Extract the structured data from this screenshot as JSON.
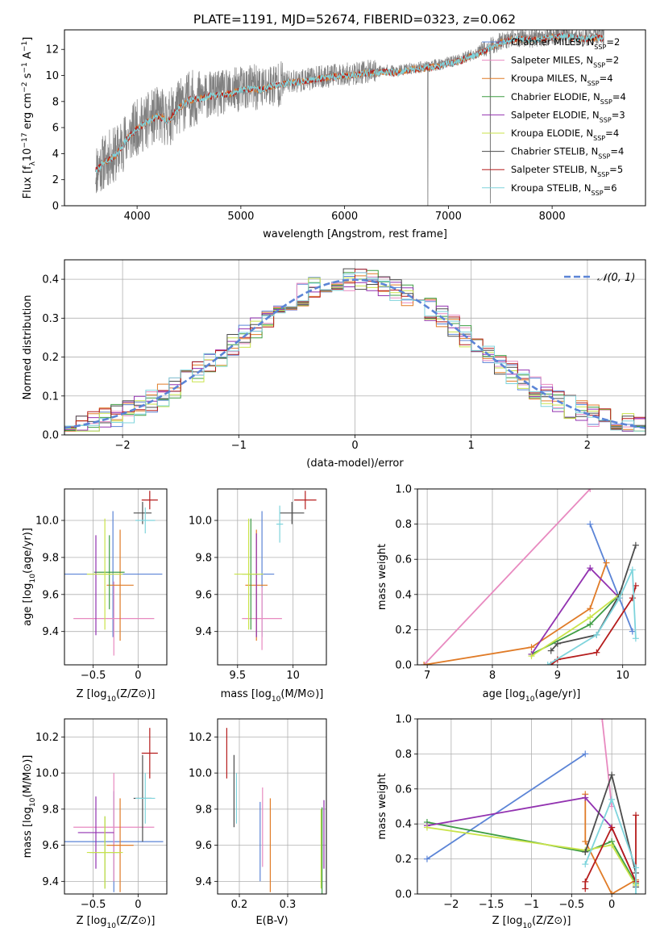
{
  "figure": {
    "colors": {
      "Chabrier MILES": "#5b84d6",
      "Salpeter MILES": "#e88ac0",
      "Kroupa MILES": "#e07b27",
      "Chabrier ELODIE": "#3f9e44",
      "Salpeter ELODIE": "#9232b0",
      "Kroupa ELODIE": "#c9e34a",
      "Chabrier STELIB": "#4c4c4c",
      "Salpeter STELIB": "#b51c1c",
      "Kroupa STELIB": "#7ed4dc",
      "data": "#808080"
    }
  },
  "chart_data": [
    {
      "id": "spectrum",
      "type": "line",
      "title": "PLATE=1191, MJD=52674, FIBERID=0323, z=0.062",
      "xlabel": "wavelength [Angstrom, rest frame]",
      "ylabel_parts": [
        "Flux [f",
        "λ",
        "10",
        "−17",
        " erg cm",
        "−2",
        " s",
        "−1",
        " A",
        "−1",
        "]"
      ],
      "xlim": [
        3300,
        8900
      ],
      "ylim": [
        0,
        13.5
      ],
      "xticks": [
        4000,
        5000,
        6000,
        7000,
        8000
      ],
      "yticks": [
        0,
        2,
        4,
        6,
        8,
        10,
        12
      ],
      "grid": false,
      "legend_position": "right",
      "data_continuum": [
        [
          3600,
          2.8
        ],
        [
          3700,
          3.5
        ],
        [
          3800,
          4.0
        ],
        [
          3900,
          5.2
        ],
        [
          4000,
          6.0
        ],
        [
          4100,
          6.5
        ],
        [
          4200,
          7.0
        ],
        [
          4300,
          6.6
        ],
        [
          4400,
          7.6
        ],
        [
          4500,
          8.2
        ],
        [
          4600,
          8.3
        ],
        [
          4700,
          8.5
        ],
        [
          4800,
          8.6
        ],
        [
          4900,
          8.7
        ],
        [
          5000,
          9.0
        ],
        [
          5100,
          9.1
        ],
        [
          5200,
          9.0
        ],
        [
          5300,
          9.3
        ],
        [
          5400,
          9.4
        ],
        [
          5500,
          9.6
        ],
        [
          5600,
          9.6
        ],
        [
          5700,
          9.8
        ],
        [
          5800,
          9.9
        ],
        [
          5900,
          10.0
        ],
        [
          6000,
          10.1
        ],
        [
          6100,
          10.1
        ],
        [
          6200,
          10.3
        ],
        [
          6300,
          10.3
        ],
        [
          6400,
          10.4
        ],
        [
          6500,
          10.3
        ],
        [
          6600,
          10.5
        ],
        [
          6700,
          10.6
        ],
        [
          6800,
          10.7
        ],
        [
          6900,
          10.8
        ],
        [
          7000,
          11.0
        ],
        [
          7100,
          11.2
        ],
        [
          7200,
          11.5
        ],
        [
          7300,
          11.8
        ],
        [
          7400,
          12.2
        ],
        [
          7500,
          12.6
        ],
        [
          7600,
          12.8
        ],
        [
          7700,
          12.9
        ],
        [
          7800,
          12.8
        ],
        [
          7900,
          12.9
        ],
        [
          8000,
          13.0
        ],
        [
          8100,
          13.1
        ],
        [
          8200,
          13.0
        ],
        [
          8300,
          12.9
        ],
        [
          8400,
          13.0
        ]
      ],
      "models": [
        {
          "name": "Chabrier MILES",
          "nssp": "2"
        },
        {
          "name": "Salpeter MILES",
          "nssp": "2"
        },
        {
          "name": "Kroupa MILES",
          "nssp": "4"
        },
        {
          "name": "Chabrier ELODIE",
          "nssp": "4"
        },
        {
          "name": "Salpeter ELODIE",
          "nssp": "3"
        },
        {
          "name": "Kroupa ELODIE",
          "nssp": "4"
        },
        {
          "name": "Chabrier STELIB",
          "nssp": "4"
        },
        {
          "name": "Salpeter STELIB",
          "nssp": "5"
        },
        {
          "name": "Kroupa STELIB",
          "nssp": "6"
        }
      ]
    },
    {
      "id": "residuals",
      "type": "histogram",
      "xlabel": "(data-model)/error",
      "ylabel": "Normed distribution",
      "xlim": [
        -2.5,
        2.5
      ],
      "ylim": [
        0,
        0.45
      ],
      "xticks": [
        -2,
        -1,
        0,
        1,
        2
      ],
      "yticks": [
        0.0,
        0.1,
        0.2,
        0.3,
        0.4
      ],
      "grid": true,
      "legend_position": "top-right",
      "reference_curve": "N(0,1)",
      "bin_width": 0.1
    },
    {
      "id": "age_vs_z",
      "type": "scatter",
      "xlabel_parts": [
        "Z [log",
        "10",
        "(Z/Z",
        "⊙",
        ")]"
      ],
      "ylabel_parts": [
        "age  [log",
        "10",
        "(age/yr)]"
      ],
      "xlim": [
        -0.82,
        0.32
      ],
      "ylim": [
        9.22,
        10.17
      ],
      "xticks": [
        -0.5,
        0.0
      ],
      "yticks": [
        9.4,
        9.6,
        9.8,
        10.0
      ],
      "grid": true,
      "points": [
        {
          "series": "Chabrier MILES",
          "x": -0.28,
          "xerr": 0.55,
          "y": 9.71,
          "yerr": 0.34
        },
        {
          "series": "Salpeter MILES",
          "x": -0.27,
          "xerr": 0.45,
          "y": 9.47,
          "yerr": 0.2
        },
        {
          "series": "Kroupa MILES",
          "x": -0.2,
          "xerr": 0.15,
          "y": 9.65,
          "yerr": 0.3
        },
        {
          "series": "Chabrier ELODIE",
          "x": -0.32,
          "xerr": 0.17,
          "y": 9.72,
          "yerr": 0.2
        },
        {
          "series": "Salpeter ELODIE",
          "x": -0.47,
          "xerr": 0.0,
          "y": 9.65,
          "yerr": 0.27
        },
        {
          "series": "Kroupa ELODIE",
          "x": -0.37,
          "xerr": 0.2,
          "y": 9.71,
          "yerr": 0.3
        },
        {
          "series": "Chabrier STELIB",
          "x": 0.05,
          "xerr": 0.1,
          "y": 10.04,
          "yerr": 0.06
        },
        {
          "series": "Salpeter STELIB",
          "x": 0.13,
          "xerr": 0.09,
          "y": 10.11,
          "yerr": 0.05
        },
        {
          "series": "Kroupa STELIB",
          "x": 0.08,
          "xerr": 0.11,
          "y": 10.0,
          "yerr": 0.07
        }
      ]
    },
    {
      "id": "age_vs_mass",
      "type": "scatter",
      "xlabel_parts": [
        "mass [log",
        "10",
        "(M/M",
        "⊙",
        ")]"
      ],
      "ylim": [
        9.22,
        10.17
      ],
      "xlim": [
        9.32,
        10.3
      ],
      "xticks": [
        9.5,
        10.0
      ],
      "yticks": [
        9.4,
        9.6,
        9.8,
        10.0
      ],
      "grid": true,
      "points": [
        {
          "series": "Chabrier MILES",
          "x": 9.72,
          "xerr": 0.11,
          "y": 9.71,
          "yerr": 0.34
        },
        {
          "series": "Salpeter MILES",
          "x": 9.72,
          "xerr": 0.18,
          "y": 9.47,
          "yerr": 0.17
        },
        {
          "series": "Kroupa MILES",
          "x": 9.67,
          "xerr": 0.1,
          "y": 9.65,
          "yerr": 0.3
        },
        {
          "series": "Chabrier ELODIE",
          "x": 9.62,
          "xerr": 0.08,
          "y": 9.71,
          "yerr": 0.3
        },
        {
          "series": "Salpeter ELODIE",
          "x": 9.67,
          "xerr": 0.0,
          "y": 9.65,
          "yerr": 0.28
        },
        {
          "series": "Kroupa ELODIE",
          "x": 9.6,
          "xerr": 0.13,
          "y": 9.71,
          "yerr": 0.3
        },
        {
          "series": "Chabrier STELIB",
          "x": 9.99,
          "xerr": 0.11,
          "y": 10.04,
          "yerr": 0.06
        },
        {
          "series": "Salpeter STELIB",
          "x": 10.11,
          "xerr": 0.1,
          "y": 10.11,
          "yerr": 0.05
        },
        {
          "series": "Kroupa STELIB",
          "x": 9.88,
          "xerr": 0.03,
          "y": 9.98,
          "yerr": 0.1
        }
      ]
    },
    {
      "id": "weight_vs_age",
      "type": "line",
      "xlabel_parts": [
        "age  [log",
        "10",
        "(age/yr)]"
      ],
      "ylabel": "mass weight",
      "xlim": [
        6.85,
        10.35
      ],
      "ylim": [
        0,
        1
      ],
      "xticks": [
        7,
        8,
        9,
        10
      ],
      "yticks": [
        0.0,
        0.2,
        0.4,
        0.6,
        0.8,
        1.0
      ],
      "grid": true,
      "series": [
        {
          "name": "Chabrier MILES",
          "points": [
            [
              9.5,
              0.8
            ],
            [
              10.15,
              0.19
            ]
          ]
        },
        {
          "name": "Salpeter MILES",
          "points": [
            [
              6.95,
              0.0
            ],
            [
              9.5,
              1.0
            ]
          ]
        },
        {
          "name": "Kroupa MILES",
          "points": [
            [
              6.95,
              0.0
            ],
            [
              8.6,
              0.1
            ],
            [
              9.5,
              0.32
            ],
            [
              9.75,
              0.58
            ]
          ]
        },
        {
          "name": "Chabrier ELODIE",
          "points": [
            [
              8.6,
              0.06
            ],
            [
              9.5,
              0.23
            ],
            [
              9.95,
              0.4
            ]
          ]
        },
        {
          "name": "Salpeter ELODIE",
          "points": [
            [
              8.6,
              0.06
            ],
            [
              9.5,
              0.55
            ],
            [
              9.95,
              0.38
            ]
          ]
        },
        {
          "name": "Kroupa ELODIE",
          "points": [
            [
              8.6,
              0.05
            ],
            [
              9.5,
              0.27
            ],
            [
              9.95,
              0.4
            ]
          ]
        },
        {
          "name": "Chabrier STELIB",
          "points": [
            [
              8.9,
              0.08
            ],
            [
              9.0,
              0.12
            ],
            [
              9.6,
              0.17
            ],
            [
              9.95,
              0.4
            ],
            [
              10.2,
              0.68
            ]
          ]
        },
        {
          "name": "Salpeter STELIB",
          "points": [
            [
              8.9,
              0.0
            ],
            [
              9.0,
              0.03
            ],
            [
              9.6,
              0.07
            ],
            [
              10.15,
              0.38
            ],
            [
              10.2,
              0.45
            ]
          ]
        },
        {
          "name": "Kroupa STELIB",
          "points": [
            [
              8.85,
              0.0
            ],
            [
              9.6,
              0.17
            ],
            [
              9.95,
              0.38
            ],
            [
              10.15,
              0.54
            ],
            [
              10.2,
              0.15
            ]
          ]
        }
      ]
    },
    {
      "id": "mass_vs_z",
      "type": "scatter",
      "xlabel_parts": [
        "Z [log",
        "10",
        "(Z/Z",
        "⊙",
        ")]"
      ],
      "ylabel_parts": [
        "mass [log",
        "10",
        "(M/M",
        "⊙",
        ")]"
      ],
      "xlim": [
        -0.82,
        0.32
      ],
      "ylim": [
        9.33,
        10.3
      ],
      "xticks": [
        -0.5,
        0.0
      ],
      "yticks": [
        9.4,
        9.6,
        9.8,
        10.0,
        10.2
      ],
      "grid": true,
      "points": [
        {
          "series": "Chabrier MILES",
          "x": -0.27,
          "xerr": 0.55,
          "y": 9.62,
          "yerr": 0.28
        },
        {
          "series": "Salpeter MILES",
          "x": -0.27,
          "xerr": 0.45,
          "y": 9.7,
          "yerr": 0.3
        },
        {
          "series": "Kroupa MILES",
          "x": -0.2,
          "xerr": 0.15,
          "y": 9.6,
          "yerr": 0.26
        },
        {
          "series": "Chabrier ELODIE",
          "x": -0.37,
          "xerr": 0.17,
          "y": 9.56,
          "yerr": 0.2
        },
        {
          "series": "Salpeter ELODIE",
          "x": -0.47,
          "xerr": 0.2,
          "y": 9.67,
          "yerr": 0.2
        },
        {
          "series": "Kroupa ELODIE",
          "x": -0.37,
          "xerr": 0.2,
          "y": 9.56,
          "yerr": 0.2
        },
        {
          "series": "Chabrier STELIB",
          "x": 0.05,
          "xerr": 0.1,
          "y": 9.86,
          "yerr": 0.24
        },
        {
          "series": "Salpeter STELIB",
          "x": 0.13,
          "xerr": 0.09,
          "y": 10.11,
          "yerr": 0.14
        },
        {
          "series": "Kroupa STELIB",
          "x": 0.08,
          "xerr": 0.11,
          "y": 9.86,
          "yerr": 0.14
        }
      ]
    },
    {
      "id": "mass_vs_ebv",
      "type": "scatter",
      "xlabel": "E(B-V)",
      "xlim": [
        0.155,
        0.38
      ],
      "ylim": [
        9.33,
        10.3
      ],
      "xticks": [
        0.2,
        0.3
      ],
      "yticks": [
        9.4,
        9.6,
        9.8,
        10.0,
        10.2
      ],
      "grid": true,
      "points": [
        {
          "series": "Chabrier MILES",
          "x": 0.243,
          "y": 9.62,
          "yerr": 0.22
        },
        {
          "series": "Salpeter MILES",
          "x": 0.248,
          "y": 9.7,
          "yerr": 0.22
        },
        {
          "series": "Kroupa MILES",
          "x": 0.264,
          "y": 9.6,
          "yerr": 0.26
        },
        {
          "series": "Chabrier ELODIE",
          "x": 0.371,
          "y": 9.56,
          "yerr": 0.25
        },
        {
          "series": "Salpeter ELODIE",
          "x": 0.375,
          "y": 9.66,
          "yerr": 0.19
        },
        {
          "series": "Kroupa ELODIE",
          "x": 0.369,
          "y": 9.58,
          "yerr": 0.22
        },
        {
          "series": "Chabrier STELIB",
          "x": 0.189,
          "y": 9.9,
          "yerr": 0.2
        },
        {
          "series": "Salpeter STELIB",
          "x": 0.174,
          "y": 10.11,
          "yerr": 0.14
        },
        {
          "series": "Kroupa STELIB",
          "x": 0.194,
          "y": 9.86,
          "yerr": 0.14
        }
      ]
    },
    {
      "id": "weight_vs_z",
      "type": "line",
      "xlabel_parts": [
        "Z [log",
        "10",
        "(Z/Z",
        "⊙",
        ")]"
      ],
      "ylabel": "mass weight",
      "xlim": [
        -2.42,
        0.42
      ],
      "ylim": [
        0,
        1
      ],
      "xticks": [
        -2.0,
        -1.5,
        -1.0,
        -0.5,
        0.0
      ],
      "yticks": [
        0.0,
        0.2,
        0.4,
        0.6,
        0.8,
        1.0
      ],
      "grid": true,
      "series": [
        {
          "name": "Chabrier MILES",
          "points": [
            [
              -2.3,
              0.2
            ],
            [
              -0.33,
              0.8
            ]
          ]
        },
        {
          "name": "Salpeter MILES",
          "points": [
            [
              -0.12,
              1.0
            ],
            [
              0.0,
              0.5
            ]
          ]
        },
        {
          "name": "Kroupa MILES",
          "points": [
            [
              -0.33,
              0.57
            ],
            [
              -0.33,
              0.3
            ],
            [
              0.0,
              0.0
            ],
            [
              0.3,
              0.08
            ]
          ]
        },
        {
          "name": "Chabrier ELODIE",
          "points": [
            [
              -2.3,
              0.41
            ],
            [
              -0.33,
              0.24
            ],
            [
              0.0,
              0.3
            ],
            [
              0.3,
              0.06
            ]
          ]
        },
        {
          "name": "Salpeter ELODIE",
          "points": [
            [
              -2.3,
              0.39
            ],
            [
              -0.33,
              0.55
            ],
            [
              0.0,
              0.38
            ],
            [
              0.3,
              0.07
            ]
          ]
        },
        {
          "name": "Kroupa ELODIE",
          "points": [
            [
              -2.3,
              0.38
            ],
            [
              -0.33,
              0.25
            ],
            [
              0.0,
              0.28
            ],
            [
              0.3,
              0.05
            ]
          ]
        },
        {
          "name": "Chabrier STELIB",
          "points": [
            [
              -0.33,
              0.24
            ],
            [
              0.0,
              0.68
            ],
            [
              0.3,
              0.12
            ],
            [
              0.3,
              0.04
            ]
          ]
        },
        {
          "name": "Salpeter STELIB",
          "points": [
            [
              -0.33,
              0.03
            ],
            [
              -0.33,
              0.07
            ],
            [
              0.0,
              0.38
            ],
            [
              0.3,
              0.07
            ],
            [
              0.3,
              0.45
            ]
          ]
        },
        {
          "name": "Kroupa STELIB",
          "points": [
            [
              -0.33,
              0.17
            ],
            [
              0.0,
              0.54
            ],
            [
              0.3,
              0.15
            ],
            [
              0.3,
              0.0
            ]
          ]
        }
      ]
    }
  ]
}
